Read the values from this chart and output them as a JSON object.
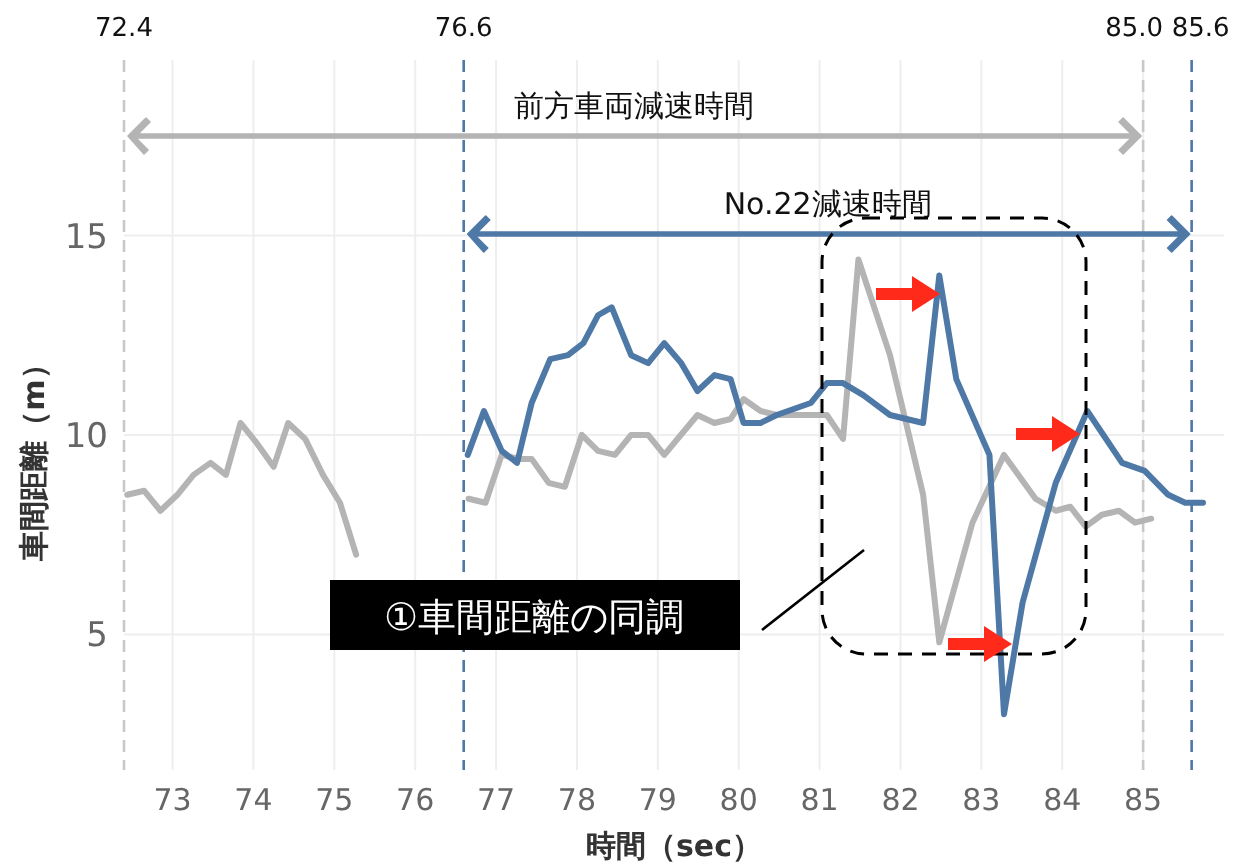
{
  "chart_data": {
    "type": "line",
    "xlabel": "時間（sec）",
    "ylabel": "車間距離（m）",
    "xlim": [
      72.4,
      86.0
    ],
    "ylim": [
      1.6,
      19.4
    ],
    "xticks": [
      73,
      74,
      75,
      76,
      77,
      78,
      79,
      80,
      81,
      82,
      83,
      84,
      85
    ],
    "yticks": [
      5,
      10,
      15
    ],
    "grid": true,
    "line_style": "solid",
    "marker": "none",
    "series": [
      {
        "color": "#b4b4b4",
        "x": [
          72.44,
          72.65,
          72.85,
          73.06,
          73.26,
          73.47,
          73.66,
          73.84,
          74.04,
          74.25,
          74.43,
          74.64,
          74.86,
          75.07,
          75.27,
          75.8,
          76.66,
          76.87,
          77.07,
          77.28,
          77.44,
          77.65,
          77.85,
          78.06,
          78.26,
          78.47,
          78.67,
          78.88,
          79.08,
          79.49,
          79.7,
          79.9,
          80.06,
          80.27,
          80.47,
          80.89,
          81.09,
          81.29,
          81.48,
          81.87,
          82.28,
          82.48,
          82.89,
          83.28,
          83.67,
          83.92,
          84.1,
          84.29,
          84.49,
          84.7,
          84.9,
          85.1
        ],
        "values": [
          8.5,
          8.6,
          8.1,
          8.5,
          9.0,
          9.3,
          9.0,
          10.3,
          9.8,
          9.2,
          10.3,
          9.9,
          9.0,
          8.3,
          7.0,
          null,
          8.4,
          8.3,
          9.5,
          9.4,
          9.4,
          8.8,
          8.7,
          10.0,
          9.6,
          9.5,
          10.0,
          10.0,
          9.5,
          10.5,
          10.3,
          10.4,
          10.9,
          10.6,
          10.5,
          10.5,
          10.5,
          9.9,
          14.4,
          12.0,
          8.5,
          4.8,
          7.8,
          9.5,
          8.4,
          8.1,
          8.2,
          7.7,
          8.0,
          8.1,
          7.8,
          7.9
        ]
      },
      {
        "color": "#4e79a7",
        "x": [
          76.65,
          76.85,
          77.07,
          77.26,
          77.44,
          77.67,
          77.89,
          78.08,
          78.26,
          78.43,
          78.67,
          78.88,
          79.08,
          79.29,
          79.49,
          79.7,
          79.9,
          80.06,
          80.27,
          80.47,
          80.89,
          81.09,
          81.29,
          81.54,
          81.87,
          82.28,
          82.48,
          82.69,
          83.1,
          83.28,
          83.51,
          83.92,
          84.31,
          84.74,
          85.02,
          85.31,
          85.52,
          85.74
        ],
        "values": [
          9.5,
          10.6,
          9.6,
          9.3,
          10.8,
          11.9,
          12.0,
          12.3,
          13.0,
          13.2,
          12.0,
          11.8,
          12.3,
          11.8,
          11.1,
          11.5,
          11.4,
          10.3,
          10.3,
          10.5,
          10.8,
          11.3,
          11.3,
          11.0,
          10.5,
          10.3,
          14.0,
          11.4,
          9.5,
          3.0,
          5.8,
          8.8,
          10.6,
          9.3,
          9.1,
          8.5,
          8.3,
          8.3
        ]
      }
    ],
    "ref_lines": [
      {
        "axis": "x",
        "value": 72.4,
        "label": "72.4",
        "color": "#c8c8c8",
        "line_style": "dashed"
      },
      {
        "axis": "x",
        "value": 76.6,
        "label": "76.6",
        "color": "#4e79a7",
        "line_style": "dashed"
      },
      {
        "axis": "x",
        "value": 85.0,
        "label": "85.0",
        "color": "#c8c8c8",
        "line_style": "dashed"
      },
      {
        "axis": "x",
        "value": 85.6,
        "label": "85.6",
        "color": "#4e79a7",
        "line_style": "dashed"
      }
    ],
    "annotations": [
      "前方車両減速時間",
      "No.22減速時間",
      "①車間距離の同調"
    ]
  }
}
